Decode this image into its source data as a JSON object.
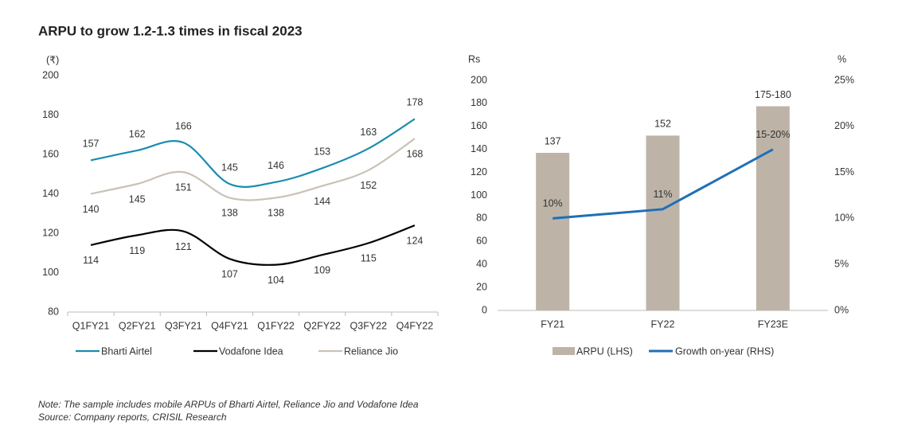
{
  "title": "ARPU to grow 1.2-1.3 times in fiscal 2023",
  "chart_data": [
    {
      "type": "line",
      "ylabel": "(₹)",
      "categories": [
        "Q1FY21",
        "Q2FY21",
        "Q3FY21",
        "Q4FY21",
        "Q1FY22",
        "Q2FY22",
        "Q3FY22",
        "Q4FY22"
      ],
      "series": [
        {
          "name": "Bharti Airtel",
          "color": "#1a8cb0",
          "values": [
            157,
            162,
            166,
            145,
            146,
            153,
            163,
            178
          ]
        },
        {
          "name": "Vodafone Idea",
          "color": "#000000",
          "values": [
            114,
            119,
            121,
            107,
            104,
            109,
            115,
            124
          ]
        },
        {
          "name": "Reliance Jio",
          "color": "#c9c2b6",
          "values": [
            140,
            145,
            151,
            138,
            138,
            144,
            152,
            168
          ]
        }
      ],
      "ylim": [
        80,
        200
      ],
      "yticks": [
        80,
        100,
        120,
        140,
        160,
        180,
        200
      ]
    },
    {
      "type": "bar_line",
      "ylabel": "Rs",
      "y2label": "%",
      "categories": [
        "FY21",
        "FY22",
        "FY23E"
      ],
      "series": [
        {
          "name": "ARPU (LHS)",
          "color": "#bdb4a7",
          "kind": "bar",
          "values": [
            137,
            152,
            177.5
          ],
          "value_labels": [
            "137",
            "152",
            "175-180"
          ]
        },
        {
          "name": "Growth on-year (RHS)",
          "color": "#1f6fb8",
          "kind": "line",
          "axis": "y2",
          "values": [
            10,
            11,
            17.5
          ],
          "value_labels": [
            "10%",
            "11%",
            "15-20%"
          ]
        }
      ],
      "ylim": [
        0,
        200
      ],
      "yticks": [
        0,
        20,
        40,
        60,
        80,
        100,
        120,
        140,
        160,
        180,
        200
      ],
      "y2lim": [
        0,
        25
      ],
      "y2ticks": [
        {
          "value": 0,
          "label": "0%"
        },
        {
          "value": 5,
          "label": "5%"
        },
        {
          "value": 10,
          "label": "10%"
        },
        {
          "value": 15,
          "label": "15%"
        },
        {
          "value": 20,
          "label": "20%"
        },
        {
          "value": 25,
          "label": "25%"
        }
      ]
    }
  ],
  "note": "Note: The sample includes mobile ARPUs of Bharti Airtel, Reliance Jio and Vodafone Idea",
  "source": "Source: Company reports, CRISIL Research"
}
